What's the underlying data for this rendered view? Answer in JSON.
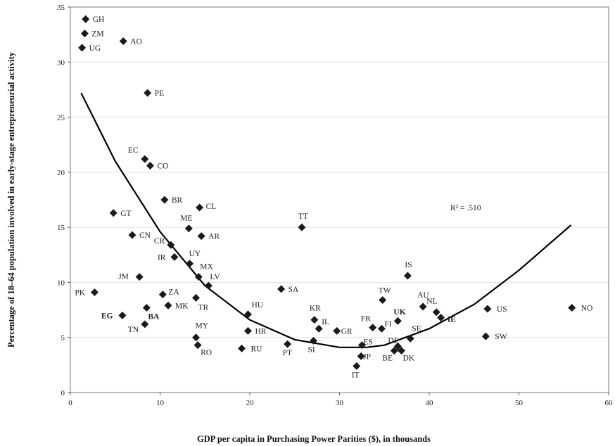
{
  "chart_data": {
    "type": "scatter",
    "title": "",
    "xlabel": "GDP per capita in Purchasing Power Parities ($), in thousands",
    "ylabel": "Percentage of 18–64 population involved in early-stage entrepreneurial activity",
    "xlim": [
      0,
      60
    ],
    "ylim": [
      0,
      35
    ],
    "xticks": [
      0,
      10,
      20,
      30,
      40,
      50,
      60
    ],
    "yticks": [
      0,
      5,
      10,
      15,
      20,
      25,
      30,
      35
    ],
    "grid": "horizontal",
    "annotation": "R² = .510",
    "marker_color": "#1a1a1a",
    "points": [
      {
        "label": "GH",
        "x": 1.7,
        "y": 33.9
      },
      {
        "label": "ZM",
        "x": 1.6,
        "y": 32.6
      },
      {
        "label": "UG",
        "x": 1.3,
        "y": 31.3
      },
      {
        "label": "AO",
        "x": 5.9,
        "y": 31.9
      },
      {
        "label": "PE",
        "x": 8.6,
        "y": 27.2
      },
      {
        "label": "EC",
        "x": 8.3,
        "y": 21.2
      },
      {
        "label": "CO",
        "x": 8.9,
        "y": 20.6
      },
      {
        "label": "BR",
        "x": 10.5,
        "y": 17.5
      },
      {
        "label": "CL",
        "x": 14.4,
        "y": 16.8
      },
      {
        "label": "GT",
        "x": 4.8,
        "y": 16.3
      },
      {
        "label": "TT",
        "x": 25.8,
        "y": 15.0
      },
      {
        "label": "ME",
        "x": 13.2,
        "y": 14.9
      },
      {
        "label": "CN",
        "x": 6.9,
        "y": 14.3
      },
      {
        "label": "AR",
        "x": 14.6,
        "y": 14.2
      },
      {
        "label": "CR",
        "x": 11.2,
        "y": 13.4
      },
      {
        "label": "IR",
        "x": 11.6,
        "y": 12.3
      },
      {
        "label": "UY",
        "x": 13.3,
        "y": 11.7
      },
      {
        "label": "MX",
        "x": 14.3,
        "y": 10.5
      },
      {
        "label": "JM",
        "x": 7.7,
        "y": 10.5
      },
      {
        "label": "IS",
        "x": 37.6,
        "y": 10.6
      },
      {
        "label": "LV",
        "x": 15.4,
        "y": 9.7
      },
      {
        "label": "SA",
        "x": 23.5,
        "y": 9.4
      },
      {
        "label": "PK",
        "x": 2.7,
        "y": 9.1
      },
      {
        "label": "ZA",
        "x": 10.3,
        "y": 8.9
      },
      {
        "label": "TR",
        "x": 14.0,
        "y": 8.6
      },
      {
        "label": "TW",
        "x": 34.8,
        "y": 8.4
      },
      {
        "label": "MK",
        "x": 10.9,
        "y": 7.9
      },
      {
        "label": "AU",
        "x": 39.3,
        "y": 7.8
      },
      {
        "label": "BA",
        "x": 8.5,
        "y": 7.7
      },
      {
        "label": "NO",
        "x": 55.9,
        "y": 7.7
      },
      {
        "label": "US",
        "x": 46.5,
        "y": 7.6
      },
      {
        "label": "NL",
        "x": 40.8,
        "y": 7.3
      },
      {
        "label": "HU",
        "x": 19.8,
        "y": 7.1
      },
      {
        "label": "EG",
        "x": 5.8,
        "y": 7.0
      },
      {
        "label": "IE",
        "x": 41.3,
        "y": 6.8
      },
      {
        "label": "KR",
        "x": 27.2,
        "y": 6.6
      },
      {
        "label": "UK",
        "x": 36.5,
        "y": 6.5
      },
      {
        "label": "TN",
        "x": 8.3,
        "y": 6.2
      },
      {
        "label": "FR",
        "x": 33.7,
        "y": 5.9
      },
      {
        "label": "FI",
        "x": 34.7,
        "y": 5.8
      },
      {
        "label": "IL",
        "x": 27.7,
        "y": 5.8
      },
      {
        "label": "GR",
        "x": 29.7,
        "y": 5.6
      },
      {
        "label": "HR",
        "x": 19.8,
        "y": 5.6
      },
      {
        "label": "SW",
        "x": 46.3,
        "y": 5.1
      },
      {
        "label": "MY",
        "x": 14.0,
        "y": 5.0
      },
      {
        "label": "SE",
        "x": 37.9,
        "y": 4.9
      },
      {
        "label": "SI",
        "x": 27.1,
        "y": 4.7
      },
      {
        "label": "PT",
        "x": 24.2,
        "y": 4.4
      },
      {
        "label": "ES",
        "x": 32.5,
        "y": 4.3
      },
      {
        "label": "RO",
        "x": 14.2,
        "y": 4.3
      },
      {
        "label": "DE",
        "x": 36.5,
        "y": 4.2
      },
      {
        "label": "RU",
        "x": 19.1,
        "y": 4.0
      },
      {
        "label": "BE",
        "x": 36.1,
        "y": 3.8
      },
      {
        "label": "DK",
        "x": 36.9,
        "y": 3.8
      },
      {
        "label": "JP",
        "x": 32.4,
        "y": 3.3
      },
      {
        "label": "IT",
        "x": 31.9,
        "y": 2.4
      }
    ],
    "fit_curve": {
      "type": "quadratic",
      "x": [
        1.2,
        5,
        10,
        15,
        20,
        25,
        30,
        33,
        35,
        40,
        45,
        50,
        55.8
      ],
      "y": [
        27.2,
        21.0,
        14.6,
        9.7,
        6.6,
        4.8,
        4.1,
        4.1,
        4.3,
        5.8,
        8.0,
        11.1,
        15.2
      ]
    }
  }
}
